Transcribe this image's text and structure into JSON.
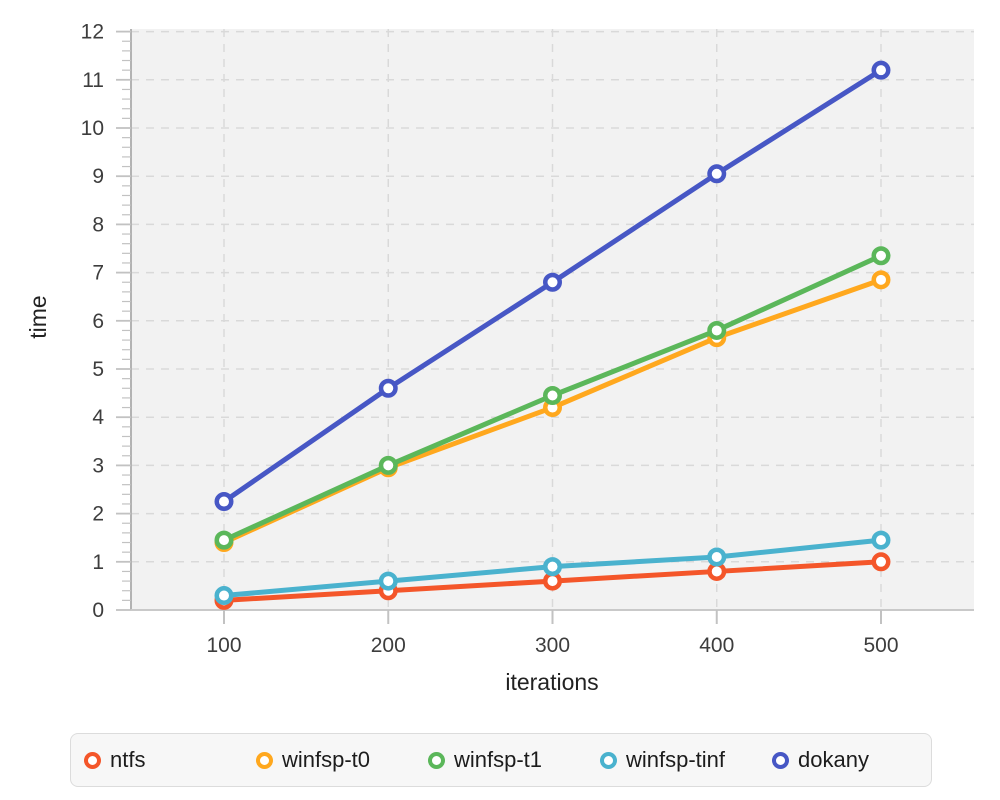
{
  "chart_data": {
    "type": "line",
    "title": "",
    "xlabel": "iterations",
    "ylabel": "time",
    "x": [
      100,
      200,
      300,
      400,
      500
    ],
    "xtick_labels": [
      "100",
      "200",
      "300",
      "400",
      "500"
    ],
    "ytick_labels": [
      "0",
      "1",
      "2",
      "3",
      "4",
      "5",
      "6",
      "7",
      "8",
      "9",
      "10",
      "11",
      "12"
    ],
    "ylim": [
      0,
      12
    ],
    "xlim": [
      43,
      557
    ],
    "y_minor_step": 0.2,
    "grid": true,
    "grid_style": "dashed",
    "legend_position": "bottom",
    "series": [
      {
        "name": "ntfs",
        "color": "#f4562a",
        "values": [
          0.2,
          0.4,
          0.6,
          0.8,
          1.0
        ]
      },
      {
        "name": "winfsp-t0",
        "color": "#ffa81e",
        "values": [
          1.4,
          2.95,
          4.2,
          5.65,
          6.85
        ]
      },
      {
        "name": "winfsp-t1",
        "color": "#5bb75a",
        "values": [
          1.45,
          3.0,
          4.45,
          5.8,
          7.35
        ]
      },
      {
        "name": "winfsp-tinf",
        "color": "#4ab2ce",
        "values": [
          0.3,
          0.6,
          0.9,
          1.1,
          1.45
        ]
      },
      {
        "name": "dokany",
        "color": "#4757c5",
        "values": [
          2.25,
          4.6,
          6.8,
          9.05,
          11.2
        ]
      }
    ],
    "marker": "open-circle"
  },
  "style": {
    "plot_bg": "#f2f2f2",
    "grid_color": "#d9d9d9",
    "y_axis_color": "#b3b3b3",
    "x_axis_color": "#c9c9c9",
    "tick_color": "#c2c2c2",
    "tick_label_color": "#3d3d3d",
    "axis_title_color": "#222222",
    "page_bg": "#ffffff"
  }
}
